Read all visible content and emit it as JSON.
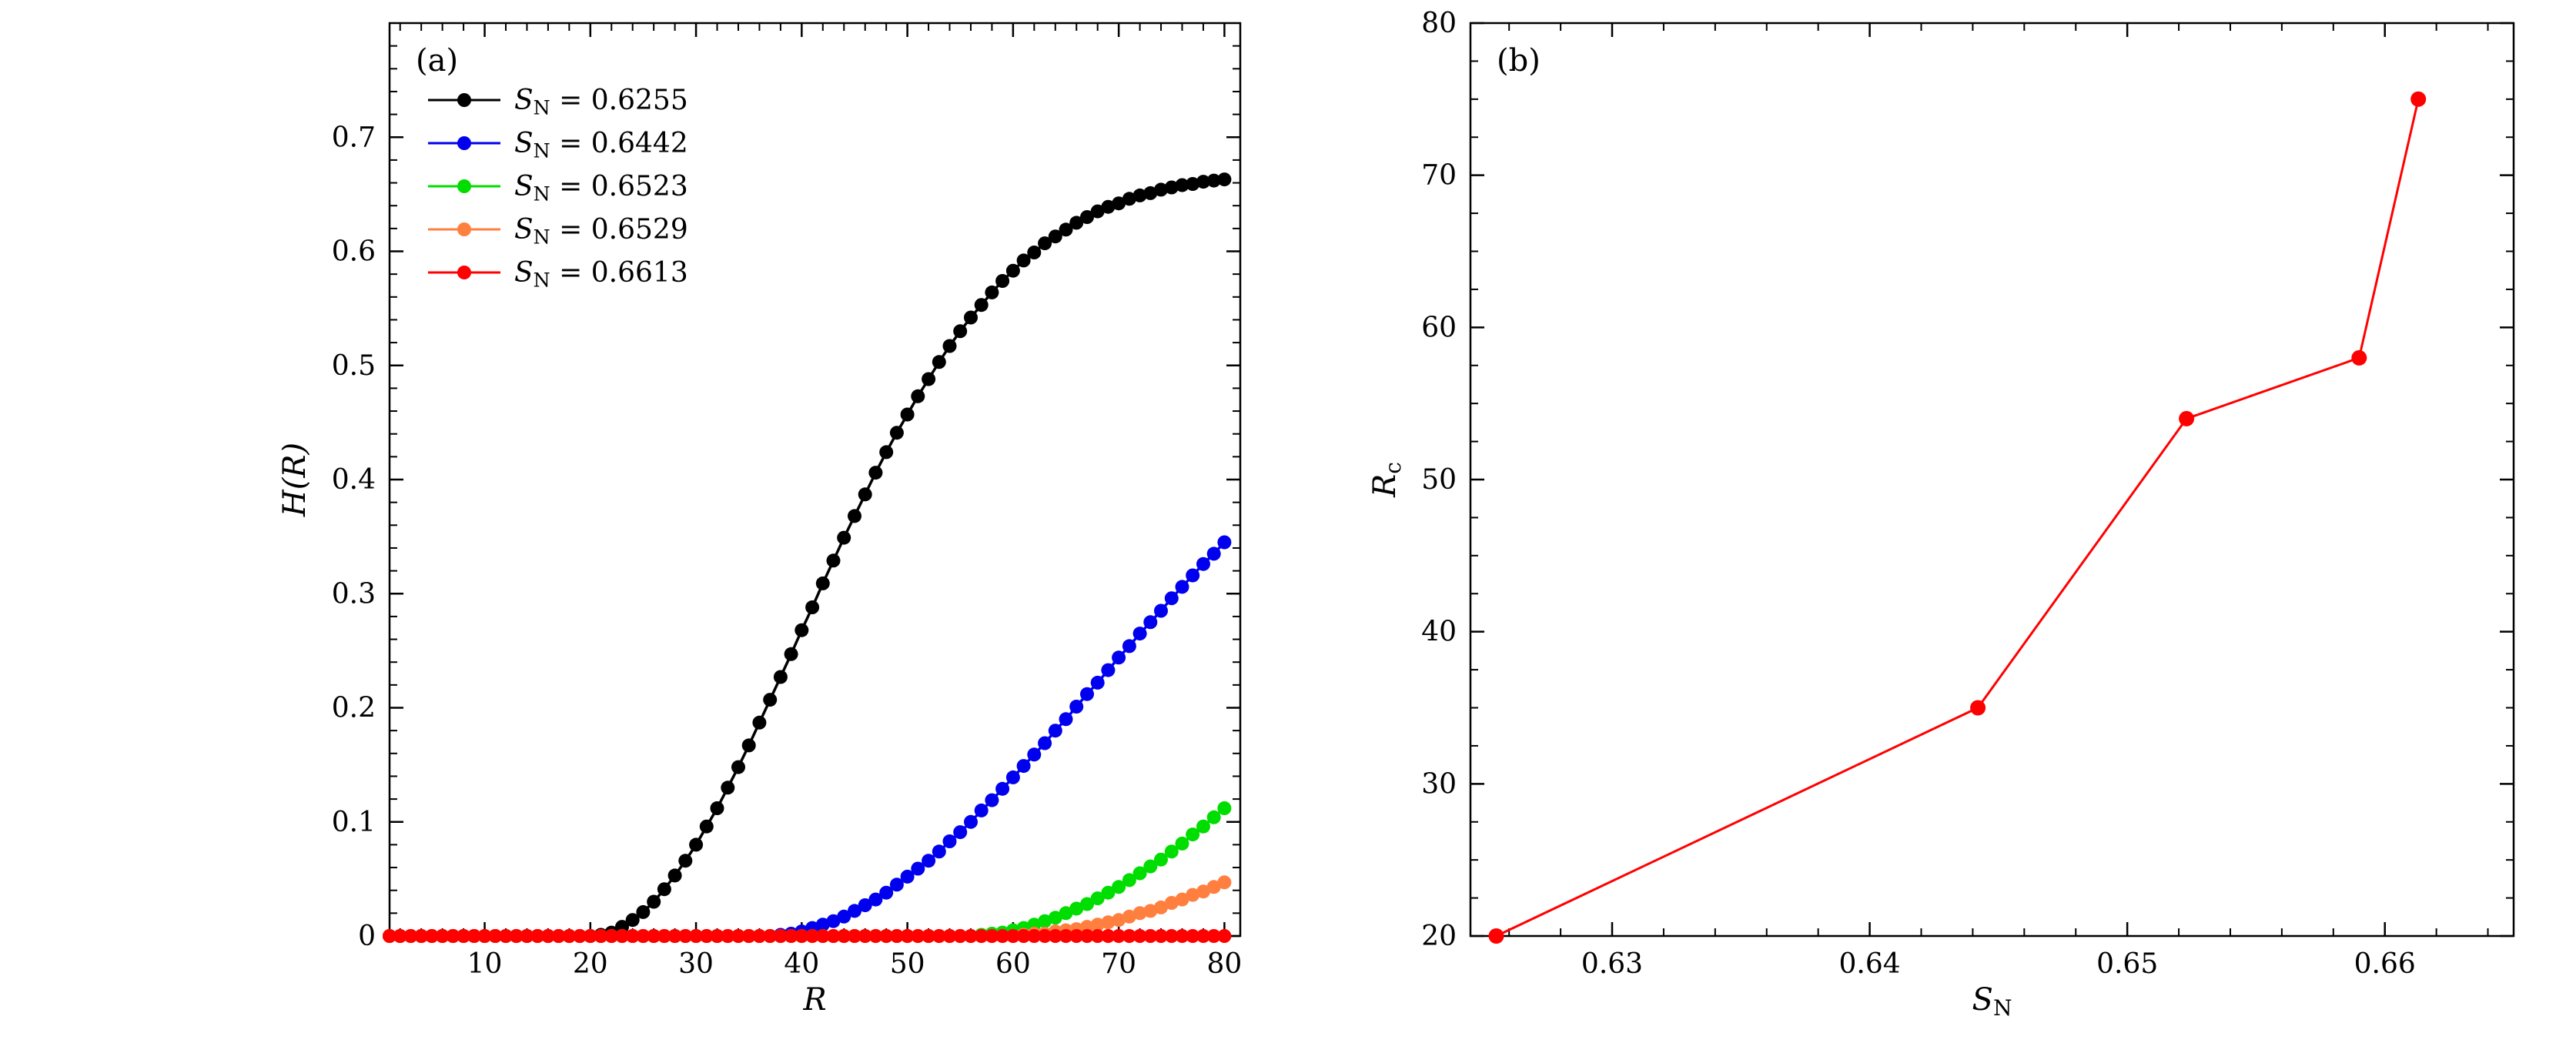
{
  "figure": {
    "background": "#ffffff",
    "axis_color": "#000000"
  },
  "chart_data": [
    {
      "id": "a",
      "type": "line",
      "panel_label": "(a)",
      "title": "",
      "xlabel": "R",
      "ylabel": "H(R)",
      "xlim": [
        1,
        81.5
      ],
      "ylim": [
        0,
        0.8
      ],
      "xticks": [
        10,
        20,
        30,
        40,
        50,
        60,
        70,
        80
      ],
      "yticks": [
        0,
        0.1,
        0.2,
        0.3,
        0.4,
        0.5,
        0.6,
        0.7
      ],
      "x_minor_step": 2,
      "y_minor_step": 0.02,
      "grid": false,
      "legend_position": "top-left",
      "marker": "circle",
      "x": [
        1,
        2,
        3,
        4,
        5,
        6,
        7,
        8,
        9,
        10,
        11,
        12,
        13,
        14,
        15,
        16,
        17,
        18,
        19,
        20,
        21,
        22,
        23,
        24,
        25,
        26,
        27,
        28,
        29,
        30,
        31,
        32,
        33,
        34,
        35,
        36,
        37,
        38,
        39,
        40,
        41,
        42,
        43,
        44,
        45,
        46,
        47,
        48,
        49,
        50,
        51,
        52,
        53,
        54,
        55,
        56,
        57,
        58,
        59,
        60,
        61,
        62,
        63,
        64,
        65,
        66,
        67,
        68,
        69,
        70,
        71,
        72,
        73,
        74,
        75,
        76,
        77,
        78,
        79,
        80
      ],
      "series": [
        {
          "name": "S_N = 0.6255",
          "color": "#000000",
          "values": [
            0,
            0,
            0,
            0,
            0,
            0,
            0,
            0,
            0,
            0,
            0,
            0,
            0,
            0,
            0,
            0,
            0,
            0,
            0,
            0,
            0.001,
            0.003,
            0.008,
            0.014,
            0.021,
            0.03,
            0.041,
            0.053,
            0.066,
            0.08,
            0.096,
            0.112,
            0.13,
            0.148,
            0.167,
            0.187,
            0.207,
            0.227,
            0.247,
            0.268,
            0.288,
            0.309,
            0.329,
            0.349,
            0.368,
            0.387,
            0.406,
            0.424,
            0.441,
            0.457,
            0.473,
            0.488,
            0.503,
            0.517,
            0.53,
            0.542,
            0.553,
            0.564,
            0.574,
            0.583,
            0.592,
            0.599,
            0.607,
            0.613,
            0.619,
            0.625,
            0.63,
            0.635,
            0.639,
            0.642,
            0.646,
            0.649,
            0.651,
            0.654,
            0.656,
            0.658,
            0.659,
            0.661,
            0.662,
            0.663
          ]
        },
        {
          "name": "S_N = 0.6442",
          "color": "#0000ee",
          "values": [
            0,
            0,
            0,
            0,
            0,
            0,
            0,
            0,
            0,
            0,
            0,
            0,
            0,
            0,
            0,
            0,
            0,
            0,
            0,
            0,
            0,
            0,
            0,
            0,
            0,
            0,
            0,
            0,
            0,
            0,
            0,
            0,
            0,
            0,
            0,
            0,
            0,
            0.001,
            0.002,
            0.004,
            0.007,
            0.01,
            0.013,
            0.017,
            0.022,
            0.027,
            0.032,
            0.038,
            0.045,
            0.052,
            0.059,
            0.066,
            0.074,
            0.083,
            0.091,
            0.1,
            0.11,
            0.119,
            0.129,
            0.139,
            0.149,
            0.159,
            0.169,
            0.18,
            0.19,
            0.201,
            0.212,
            0.222,
            0.233,
            0.244,
            0.254,
            0.265,
            0.275,
            0.285,
            0.296,
            0.306,
            0.316,
            0.326,
            0.335,
            0.345
          ]
        },
        {
          "name": "S_N = 0.6523",
          "color": "#00dd00",
          "values": [
            0,
            0,
            0,
            0,
            0,
            0,
            0,
            0,
            0,
            0,
            0,
            0,
            0,
            0,
            0,
            0,
            0,
            0,
            0,
            0,
            0,
            0,
            0,
            0,
            0,
            0,
            0,
            0,
            0,
            0,
            0,
            0,
            0,
            0,
            0,
            0,
            0,
            0,
            0,
            0,
            0,
            0,
            0,
            0,
            0,
            0,
            0,
            0,
            0,
            0,
            0,
            0,
            0,
            0,
            0,
            0,
            0.001,
            0.002,
            0.003,
            0.005,
            0.007,
            0.01,
            0.013,
            0.016,
            0.02,
            0.024,
            0.028,
            0.033,
            0.038,
            0.043,
            0.049,
            0.055,
            0.061,
            0.067,
            0.074,
            0.081,
            0.089,
            0.096,
            0.104,
            0.112
          ]
        },
        {
          "name": "S_N = 0.6529",
          "color": "#ff7f3f",
          "values": [
            0,
            0,
            0,
            0,
            0,
            0,
            0,
            0,
            0,
            0,
            0,
            0,
            0,
            0,
            0,
            0,
            0,
            0,
            0,
            0,
            0,
            0,
            0,
            0,
            0,
            0,
            0,
            0,
            0,
            0,
            0,
            0,
            0,
            0,
            0,
            0,
            0,
            0,
            0,
            0,
            0,
            0,
            0,
            0,
            0,
            0,
            0,
            0,
            0,
            0,
            0,
            0,
            0,
            0,
            0,
            0,
            0,
            0,
            0,
            0,
            0.001,
            0.002,
            0.002,
            0.004,
            0.005,
            0.006,
            0.008,
            0.01,
            0.012,
            0.014,
            0.017,
            0.02,
            0.022,
            0.025,
            0.029,
            0.032,
            0.036,
            0.039,
            0.043,
            0.047
          ]
        },
        {
          "name": "S_N = 0.6613",
          "color": "#ff0000",
          "values": [
            0,
            0,
            0,
            0,
            0,
            0,
            0,
            0,
            0,
            0,
            0,
            0,
            0,
            0,
            0,
            0,
            0,
            0,
            0,
            0,
            0,
            0,
            0,
            0,
            0,
            0,
            0,
            0,
            0,
            0,
            0,
            0,
            0,
            0,
            0,
            0,
            0,
            0,
            0,
            0,
            0,
            0,
            0,
            0,
            0,
            0,
            0,
            0,
            0,
            0,
            0,
            0,
            0,
            0,
            0,
            0,
            0,
            0,
            0,
            0,
            0,
            0,
            0,
            0,
            0,
            0,
            0,
            0,
            0,
            0,
            0,
            0,
            0,
            0,
            0,
            0,
            0,
            0,
            0,
            0
          ]
        }
      ]
    },
    {
      "id": "b",
      "type": "scatter",
      "panel_label": "(b)",
      "title": "",
      "xlabel": "S_N",
      "ylabel": "R_c",
      "xlim": [
        0.6245,
        0.665
      ],
      "ylim": [
        20,
        80
      ],
      "xticks": [
        0.63,
        0.64,
        0.65,
        0.66
      ],
      "yticks": [
        20,
        30,
        40,
        50,
        60,
        70,
        80
      ],
      "x_minor_step": 0.002,
      "y_minor_step": 2.5,
      "grid": false,
      "color": "#ff0000",
      "marker": "circle",
      "x": [
        0.6255,
        0.6442,
        0.6523,
        0.659,
        0.6613
      ],
      "y": [
        20,
        35,
        54,
        58,
        75
      ]
    }
  ]
}
